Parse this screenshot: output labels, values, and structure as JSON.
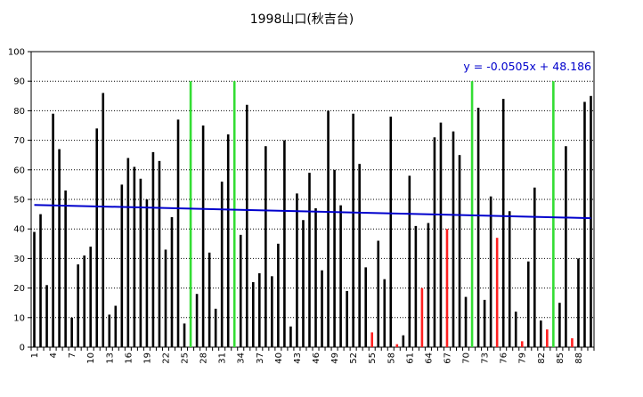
{
  "chart_data": {
    "type": "bar",
    "title": "1998山口(秋吉台)",
    "xlabel": "",
    "ylabel": "",
    "ylim": [
      0,
      100
    ],
    "yticks": [
      0,
      10,
      20,
      30,
      40,
      50,
      60,
      70,
      80,
      90,
      100
    ],
    "x": [
      1,
      2,
      3,
      4,
      5,
      6,
      7,
      8,
      9,
      10,
      11,
      12,
      13,
      14,
      15,
      16,
      17,
      18,
      19,
      20,
      21,
      22,
      23,
      24,
      25,
      26,
      27,
      28,
      29,
      30,
      31,
      32,
      33,
      34,
      35,
      36,
      37,
      38,
      39,
      40,
      41,
      42,
      43,
      44,
      45,
      46,
      47,
      48,
      49,
      50,
      51,
      52,
      53,
      54,
      55,
      56,
      57,
      58,
      59,
      60,
      61,
      62,
      63,
      64,
      65,
      66,
      67,
      68,
      69,
      70,
      71,
      72,
      73,
      74,
      75,
      76,
      77,
      78,
      79,
      80,
      81,
      82,
      83,
      84,
      85,
      86,
      87,
      88,
      89,
      90
    ],
    "xtick_labels": [
      "1",
      "4",
      "7",
      "10",
      "13",
      "16",
      "19",
      "22",
      "25",
      "28",
      "31",
      "34",
      "37",
      "40",
      "43",
      "46",
      "49",
      "52",
      "55",
      "58",
      "61",
      "64",
      "67",
      "70",
      "73",
      "76",
      "79",
      "82",
      "85",
      "88"
    ],
    "values": [
      39,
      45,
      21,
      79,
      67,
      53,
      10,
      28,
      31,
      34,
      74,
      86,
      11,
      14,
      55,
      64,
      61,
      57,
      50,
      66,
      63,
      33,
      44,
      77,
      8,
      90,
      18,
      75,
      32,
      13,
      56,
      72,
      90,
      38,
      82,
      22,
      25,
      68,
      24,
      35,
      70,
      7,
      52,
      43,
      59,
      47,
      26,
      80,
      60,
      48,
      19,
      79,
      62,
      27,
      5,
      36,
      23,
      78,
      1,
      4,
      58,
      41,
      20,
      42,
      71,
      76,
      40,
      73,
      65,
      17,
      90,
      81,
      16,
      51,
      37,
      84,
      46,
      12,
      2,
      29,
      54,
      9,
      6,
      90,
      15,
      68,
      3,
      30,
      83,
      85
    ],
    "colors": [
      "#000000",
      "#000000",
      "#000000",
      "#000000",
      "#000000",
      "#000000",
      "#000000",
      "#000000",
      "#000000",
      "#000000",
      "#000000",
      "#000000",
      "#000000",
      "#000000",
      "#000000",
      "#000000",
      "#000000",
      "#000000",
      "#000000",
      "#000000",
      "#000000",
      "#000000",
      "#000000",
      "#000000",
      "#000000",
      "#33dd33",
      "#000000",
      "#000000",
      "#000000",
      "#000000",
      "#000000",
      "#000000",
      "#33dd33",
      "#000000",
      "#000000",
      "#000000",
      "#000000",
      "#000000",
      "#000000",
      "#000000",
      "#000000",
      "#000000",
      "#000000",
      "#000000",
      "#000000",
      "#000000",
      "#000000",
      "#000000",
      "#000000",
      "#000000",
      "#000000",
      "#000000",
      "#000000",
      "#000000",
      "#ff2020",
      "#000000",
      "#000000",
      "#000000",
      "#ff2020",
      "#000000",
      "#000000",
      "#000000",
      "#ff2020",
      "#000000",
      "#000000",
      "#000000",
      "#ff2020",
      "#000000",
      "#000000",
      "#000000",
      "#33dd33",
      "#000000",
      "#000000",
      "#000000",
      "#ff2020",
      "#000000",
      "#000000",
      "#000000",
      "#ff2020",
      "#000000",
      "#000000",
      "#000000",
      "#ff2020",
      "#33dd33",
      "#000000",
      "#000000",
      "#ff2020",
      "#000000",
      "#000000",
      "#000000"
    ],
    "trendline": {
      "slope": -0.0505,
      "intercept": 48.186,
      "color": "#0000cc",
      "label": "y = -0.0505x + 48.186"
    },
    "grid": "horizontal-dotted",
    "legend": "none"
  }
}
